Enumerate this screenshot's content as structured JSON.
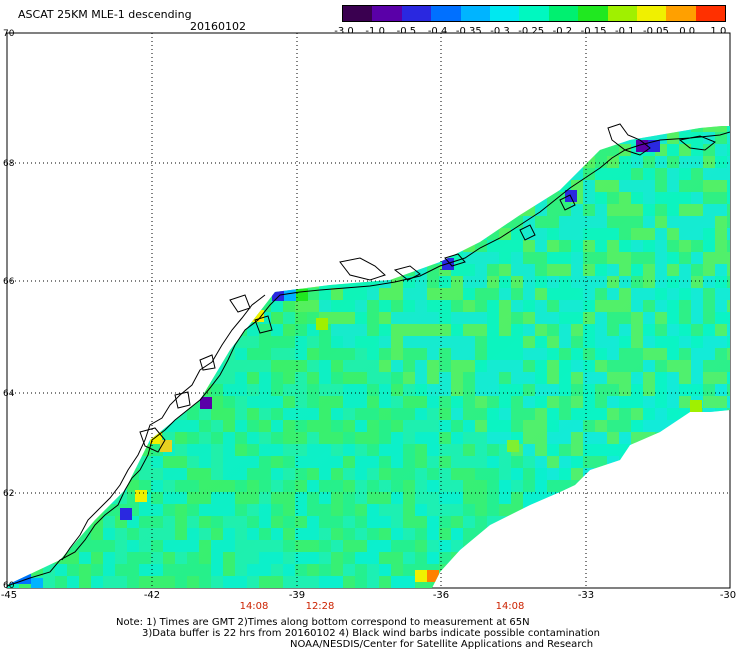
{
  "header": {
    "title": "ASCAT 25KM MLE-1 descending",
    "date": "20160102"
  },
  "colorbar": {
    "labels": [
      "-3.0",
      "-1.0",
      "-0.5",
      "-0.4",
      "-0.35",
      "-0.3",
      "-0.25",
      "-0.2",
      "-0.15",
      "-0.1",
      "-0.05",
      "0.0",
      "1.0"
    ],
    "colors": [
      "#3a0050",
      "#5a00a8",
      "#2a28e0",
      "#0070ff",
      "#00b4ff",
      "#00e8f0",
      "#00f8c0",
      "#00f070",
      "#20e820",
      "#a0f000",
      "#f0f000",
      "#ffa000",
      "#ff3000"
    ]
  },
  "axes": {
    "lon_labels": [
      "-45",
      "-42",
      "-39",
      "-36",
      "-33",
      "-30"
    ],
    "lat_labels": [
      "70",
      "68",
      "66",
      "64",
      "62",
      "60"
    ]
  },
  "times": [
    "14:08",
    "12:28",
    "14:08"
  ],
  "time_color": "#cc2200",
  "notes": [
    "Note: 1) Times are GMT 2)Times along bottom correspond to measurement at 65N",
    "3)Data buffer is 22 hrs from 20160102 4) Black wind barbs indicate possible contamination",
    "NOAA/NESDIS/Center for Satellite Applications and Research"
  ]
}
